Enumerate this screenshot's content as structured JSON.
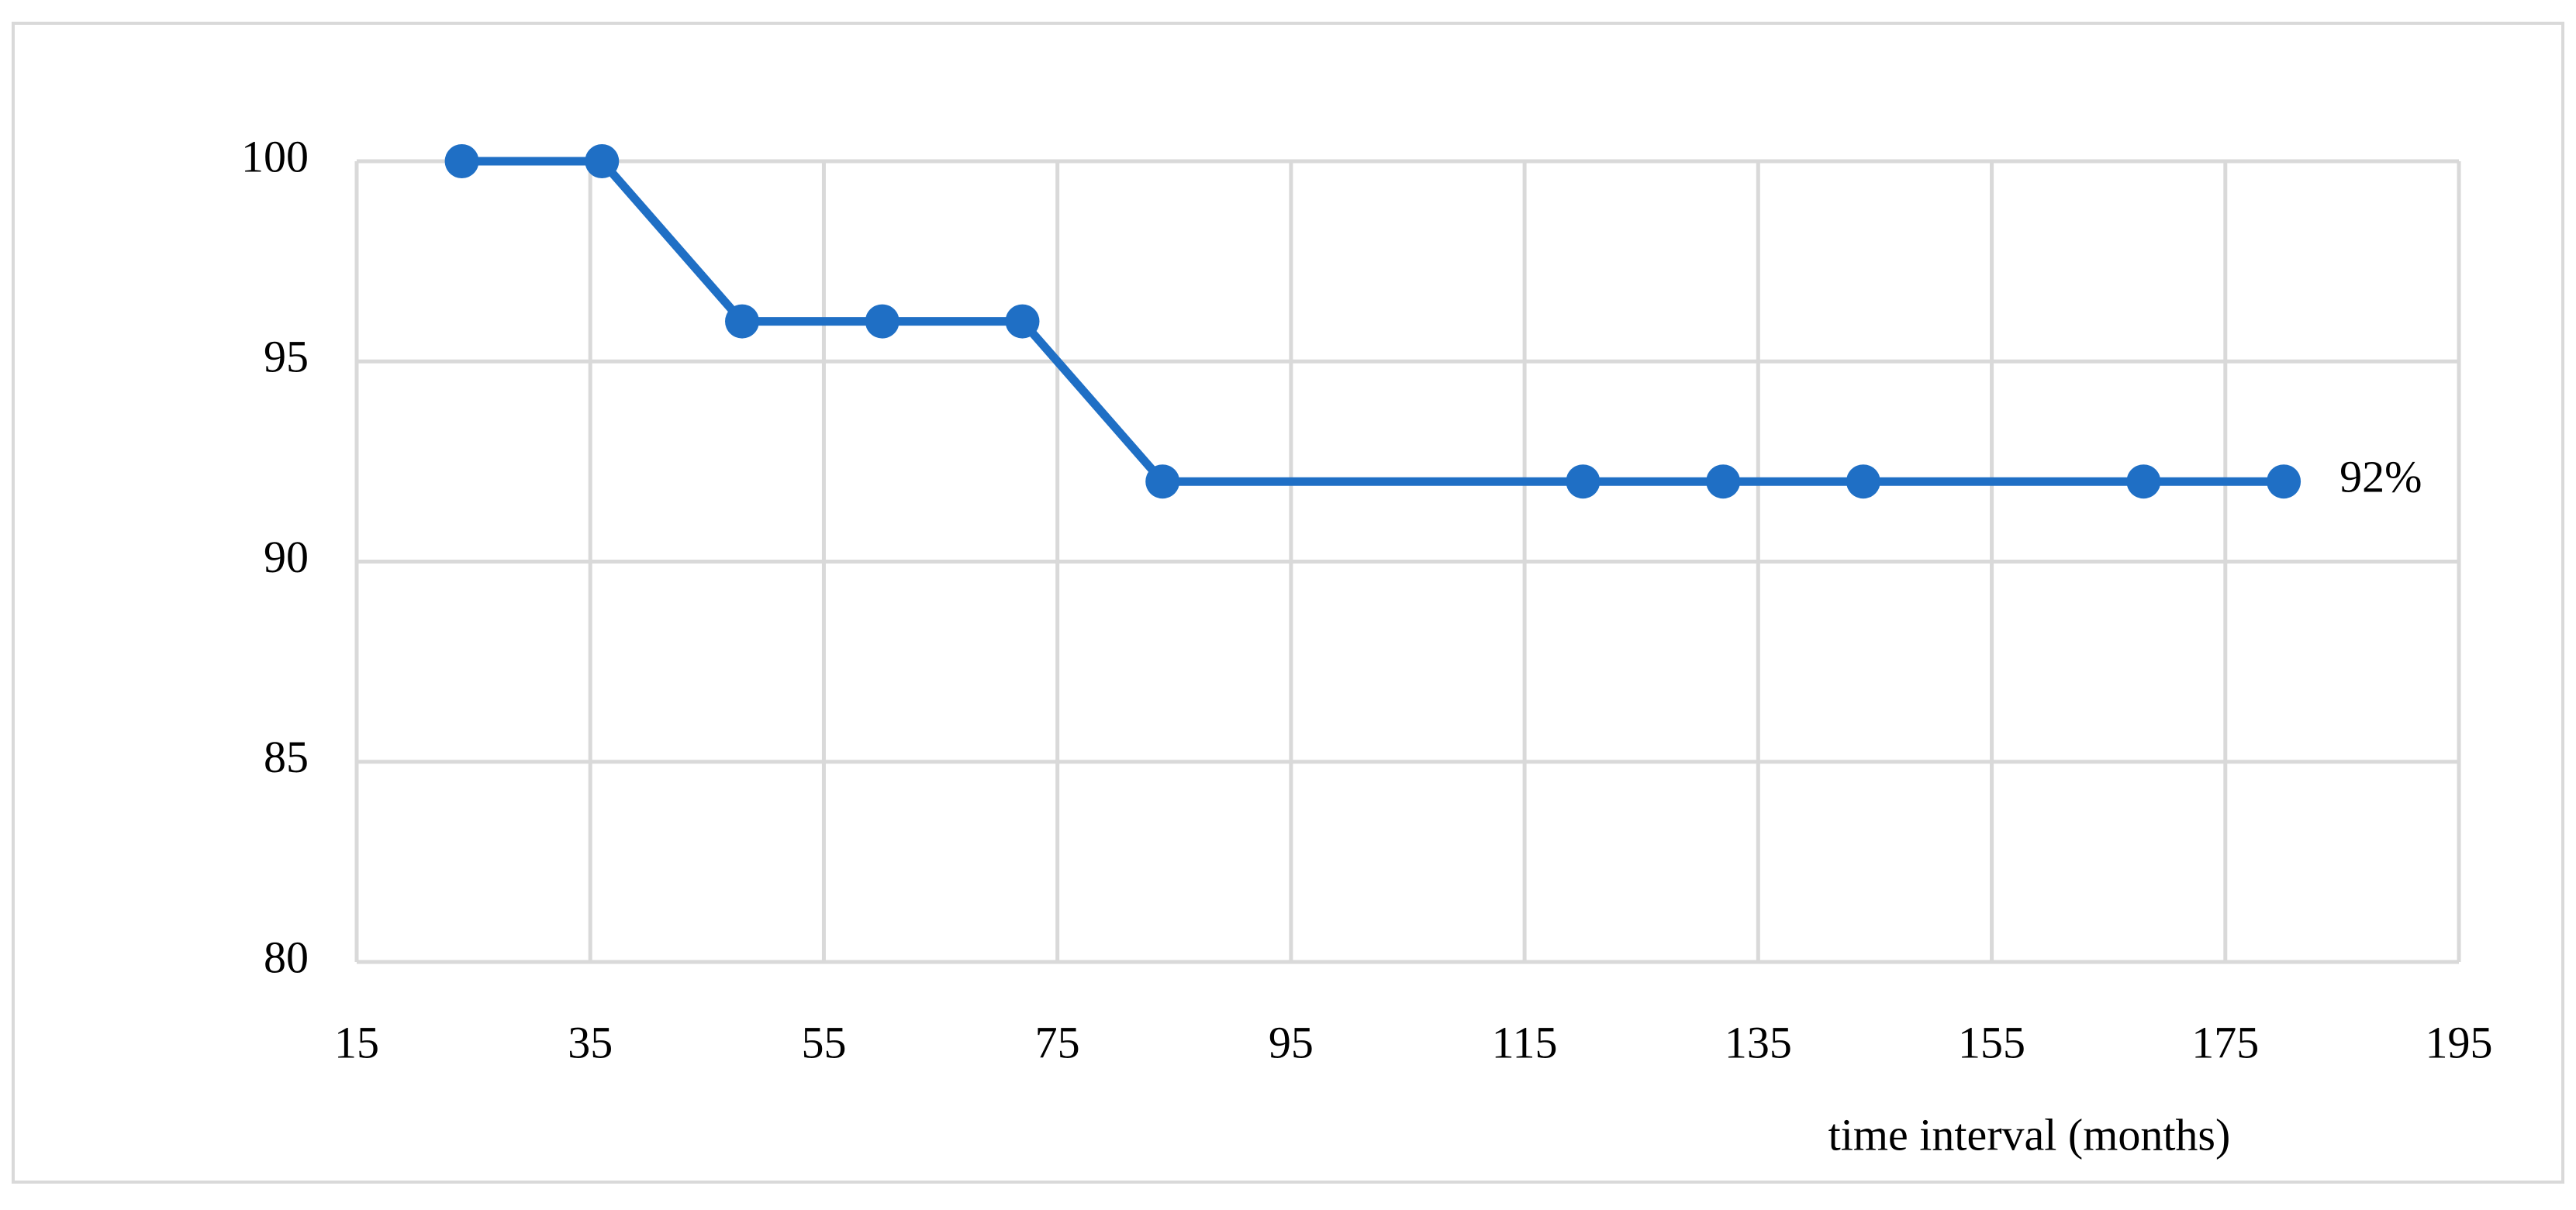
{
  "chart_data": {
    "type": "line",
    "x_label": "time interval (months)",
    "x": [
      24,
      36,
      48,
      60,
      72,
      84,
      120,
      132,
      144,
      168,
      180
    ],
    "series": [
      {
        "color": "#1f6fc5",
        "values": [
          100,
          100,
          96,
          96,
          96,
          92,
          92,
          92,
          92,
          92,
          92
        ],
        "value_labels": [
          null,
          null,
          null,
          null,
          null,
          null,
          null,
          null,
          null,
          null,
          "92%"
        ]
      }
    ],
    "xlim": [
      15,
      195
    ],
    "xticks": [
      15,
      35,
      55,
      75,
      95,
      115,
      135,
      155,
      175,
      195
    ],
    "ylim": [
      80,
      100
    ],
    "yticks": [
      80,
      85,
      90,
      95,
      100
    ],
    "grid": true
  }
}
